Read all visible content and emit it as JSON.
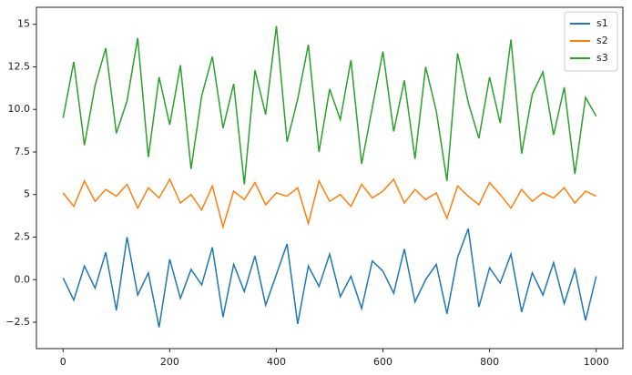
{
  "chart_data": {
    "type": "line",
    "x": [
      0,
      20,
      40,
      60,
      80,
      100,
      120,
      140,
      160,
      180,
      200,
      220,
      240,
      260,
      280,
      300,
      320,
      340,
      360,
      380,
      400,
      420,
      440,
      460,
      480,
      500,
      520,
      540,
      560,
      580,
      600,
      620,
      640,
      660,
      680,
      700,
      720,
      740,
      760,
      780,
      800,
      820,
      840,
      860,
      880,
      900,
      920,
      940,
      960,
      980,
      1000
    ],
    "series": [
      {
        "name": "s1",
        "color": "#1f77b4",
        "values": [
          0.1,
          -1.2,
          0.8,
          -0.5,
          1.6,
          -1.8,
          2.5,
          -0.9,
          0.4,
          -2.8,
          1.2,
          -1.1,
          0.6,
          -0.3,
          1.9,
          -2.2,
          0.9,
          -0.7,
          1.4,
          -1.5,
          0.3,
          2.1,
          -2.6,
          0.8,
          -0.4,
          1.5,
          -1.0,
          0.2,
          -1.7,
          1.1,
          0.5,
          -0.8,
          1.8,
          -1.3,
          0.0,
          0.9,
          -2.0,
          1.3,
          3.0,
          -1.6,
          0.7,
          -0.2,
          1.5,
          -1.9,
          0.4,
          -0.9,
          1.0,
          -1.4,
          0.6,
          -2.4,
          0.2
        ]
      },
      {
        "name": "s2",
        "color": "#ff7f0e",
        "values": [
          5.1,
          4.3,
          5.8,
          4.6,
          5.3,
          4.9,
          5.6,
          4.2,
          5.4,
          4.8,
          5.9,
          4.5,
          5.0,
          4.1,
          5.5,
          3.1,
          5.2,
          4.7,
          5.7,
          4.4,
          5.1,
          4.9,
          5.4,
          3.3,
          5.8,
          4.6,
          5.0,
          4.3,
          5.6,
          4.8,
          5.2,
          5.9,
          4.5,
          5.3,
          4.7,
          5.1,
          3.6,
          5.5,
          4.9,
          4.4,
          5.7,
          5.0,
          4.2,
          5.3,
          4.6,
          5.1,
          4.8,
          5.4,
          4.5,
          5.2,
          4.9
        ]
      },
      {
        "name": "s3",
        "color": "#2ca02c",
        "values": [
          9.5,
          12.8,
          7.9,
          11.4,
          13.6,
          8.6,
          10.5,
          14.2,
          7.2,
          11.9,
          9.1,
          12.6,
          6.5,
          10.8,
          13.1,
          8.9,
          11.5,
          5.6,
          12.3,
          9.7,
          14.9,
          8.1,
          10.6,
          13.8,
          7.5,
          11.2,
          9.4,
          12.9,
          6.8,
          10.1,
          13.4,
          8.7,
          11.7,
          7.1,
          12.5,
          9.9,
          5.8,
          13.3,
          10.4,
          8.3,
          11.9,
          9.2,
          14.1,
          7.4,
          10.9,
          12.2,
          8.5,
          11.3,
          6.2,
          10.7,
          9.6
        ]
      }
    ],
    "xlim": [
      -50,
      1050
    ],
    "ylim": [
      -4.05,
      16.0
    ],
    "xticks": [
      0,
      200,
      400,
      600,
      800,
      1000
    ],
    "yticks": [
      {
        "value": -2.5,
        "label": "−2.5"
      },
      {
        "value": 0,
        "label": "0.0"
      },
      2.5,
      5.0,
      7.5,
      {
        "value": 10,
        "label": "10.0"
      },
      12.5,
      15.0
    ],
    "grid": false,
    "legend": "upper right"
  }
}
